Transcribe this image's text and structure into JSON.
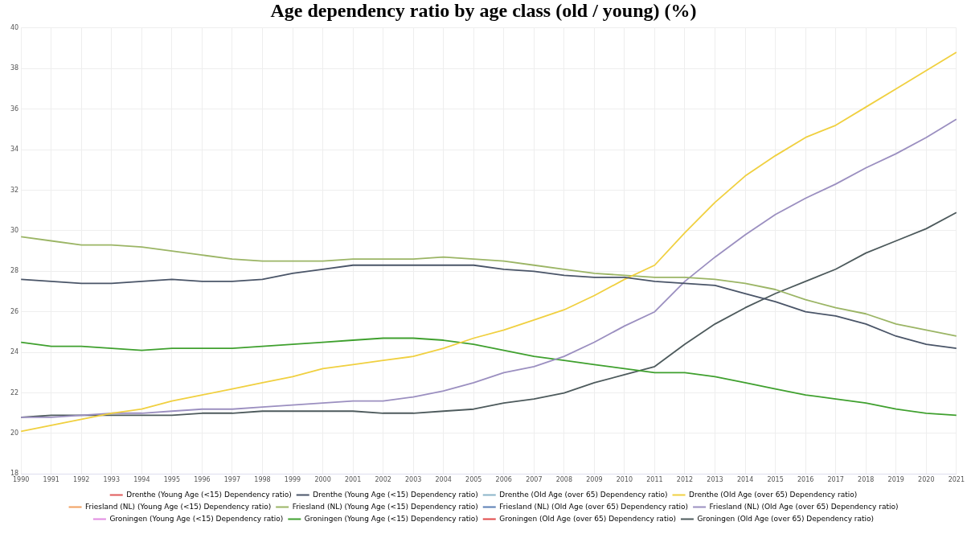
{
  "chart_data": {
    "type": "line",
    "title": "Age dependency ratio by age class (old / young) (%)",
    "categories": [
      "1990",
      "1991",
      "1992",
      "1993",
      "1994",
      "1995",
      "1996",
      "1997",
      "1998",
      "1999",
      "2000",
      "2001",
      "2002",
      "2003",
      "2004",
      "2005",
      "2006",
      "2007",
      "2008",
      "2009",
      "2010",
      "2011",
      "2012",
      "2013",
      "2014",
      "2015",
      "2016",
      "2017",
      "2018",
      "2019",
      "2020",
      "2021"
    ],
    "ylim": [
      18,
      40
    ],
    "yticks": [
      18,
      20,
      22,
      24,
      26,
      28,
      30,
      32,
      34,
      36,
      38,
      40
    ],
    "grid": true,
    "legend": "bottom",
    "marker": "none",
    "line_style": "solid",
    "series": [
      {
        "name": "Drenthe (Young Age (<15) Dependency ratio)",
        "color": "#e05a5a",
        "values": [
          null,
          null,
          null,
          null,
          null,
          null,
          null,
          null,
          null,
          null,
          null,
          null,
          null,
          null,
          null,
          null,
          null,
          null,
          null,
          null,
          null,
          null,
          null,
          null,
          null,
          null,
          null,
          null,
          null,
          null,
          null,
          null
        ]
      },
      {
        "name": "Drenthe (Young Age (<15) Dependency ratio)",
        "color": "#4a5568",
        "values": [
          27.6,
          27.5,
          27.4,
          27.4,
          27.5,
          27.6,
          27.5,
          27.5,
          27.6,
          27.9,
          28.1,
          28.3,
          28.3,
          28.3,
          28.3,
          28.3,
          28.1,
          28.0,
          27.8,
          27.7,
          27.7,
          27.5,
          27.4,
          27.3,
          26.9,
          26.5,
          26.0,
          25.8,
          25.4,
          24.8,
          24.4,
          24.2
        ]
      },
      {
        "name": "Drenthe (Old Age (over 65) Dependency ratio)",
        "color": "#8ab4c8",
        "values": [
          null,
          null,
          null,
          null,
          null,
          null,
          null,
          null,
          null,
          null,
          null,
          null,
          null,
          null,
          null,
          null,
          null,
          null,
          null,
          null,
          null,
          null,
          null,
          null,
          null,
          null,
          null,
          null,
          null,
          null,
          null,
          null
        ]
      },
      {
        "name": "Drenthe (Old Age (over 65) Dependency ratio)",
        "color": "#f0d040",
        "values": [
          20.1,
          20.4,
          20.7,
          21.0,
          21.2,
          21.6,
          21.9,
          22.2,
          22.5,
          22.8,
          23.2,
          23.4,
          23.6,
          23.8,
          24.2,
          24.7,
          25.1,
          25.6,
          26.1,
          26.8,
          27.6,
          28.3,
          29.9,
          31.4,
          32.7,
          33.7,
          34.6,
          35.2,
          36.1,
          37.0,
          37.9,
          38.8
        ]
      },
      {
        "name": "Friesland (NL) (Young Age (<15) Dependency ratio)",
        "color": "#f0a060",
        "values": [
          null,
          null,
          null,
          null,
          null,
          null,
          null,
          null,
          null,
          null,
          null,
          null,
          null,
          null,
          null,
          null,
          null,
          null,
          null,
          null,
          null,
          null,
          null,
          null,
          null,
          null,
          null,
          null,
          null,
          null,
          null,
          null
        ]
      },
      {
        "name": "Friesland (NL) (Young Age (<15) Dependency ratio)",
        "color": "#9bb565",
        "values": [
          29.7,
          29.5,
          29.3,
          29.3,
          29.2,
          29.0,
          28.8,
          28.6,
          28.5,
          28.5,
          28.5,
          28.6,
          28.6,
          28.6,
          28.7,
          28.6,
          28.5,
          28.3,
          28.1,
          27.9,
          27.8,
          27.7,
          27.7,
          27.6,
          27.4,
          27.1,
          26.6,
          26.2,
          25.9,
          25.4,
          25.1,
          24.8
        ]
      },
      {
        "name": "Friesland (NL) (Old Age (over 65) Dependency ratio)",
        "color": "#5b7fb5",
        "values": [
          null,
          null,
          null,
          null,
          null,
          null,
          null,
          null,
          null,
          null,
          null,
          null,
          null,
          null,
          null,
          null,
          null,
          null,
          null,
          null,
          null,
          null,
          null,
          null,
          null,
          null,
          null,
          null,
          null,
          null,
          null,
          null
        ]
      },
      {
        "name": "Friesland (NL) (Old Age (over 65) Dependency ratio)",
        "color": "#9b8fc0",
        "values": [
          20.8,
          20.8,
          20.9,
          21.0,
          21.0,
          21.1,
          21.2,
          21.2,
          21.3,
          21.4,
          21.5,
          21.6,
          21.6,
          21.8,
          22.1,
          22.5,
          23.0,
          23.3,
          23.8,
          24.5,
          25.3,
          26.0,
          27.5,
          28.7,
          29.8,
          30.8,
          31.6,
          32.3,
          33.1,
          33.8,
          34.6,
          35.5
        ]
      },
      {
        "name": "Groningen (Young Age (<15) Dependency ratio)",
        "color": "#e08ae0",
        "values": [
          null,
          null,
          null,
          null,
          null,
          null,
          null,
          null,
          null,
          null,
          null,
          null,
          null,
          null,
          null,
          null,
          null,
          null,
          null,
          null,
          null,
          null,
          null,
          null,
          null,
          null,
          null,
          null,
          null,
          null,
          null,
          null
        ]
      },
      {
        "name": "Groningen (Young Age (<15) Dependency ratio)",
        "color": "#3fa02e",
        "values": [
          24.5,
          24.3,
          24.3,
          24.2,
          24.1,
          24.2,
          24.2,
          24.2,
          24.3,
          24.4,
          24.5,
          24.6,
          24.7,
          24.7,
          24.6,
          24.4,
          24.1,
          23.8,
          23.6,
          23.4,
          23.2,
          23.0,
          23.0,
          22.8,
          22.5,
          22.2,
          21.9,
          21.7,
          21.5,
          21.2,
          21.0,
          20.9
        ]
      },
      {
        "name": "Groningen (Old Age (over 65) Dependency ratio)",
        "color": "#e04848",
        "values": [
          null,
          null,
          null,
          null,
          null,
          null,
          null,
          null,
          null,
          null,
          null,
          null,
          null,
          null,
          null,
          null,
          null,
          null,
          null,
          null,
          null,
          null,
          null,
          null,
          null,
          null,
          null,
          null,
          null,
          null,
          null,
          null
        ]
      },
      {
        "name": "Groningen (Old Age (over 65) Dependency ratio)",
        "color": "#4d5a5c",
        "values": [
          20.8,
          20.9,
          20.9,
          20.9,
          20.9,
          20.9,
          21.0,
          21.0,
          21.1,
          21.1,
          21.1,
          21.1,
          21.0,
          21.0,
          21.1,
          21.2,
          21.5,
          21.7,
          22.0,
          22.5,
          22.9,
          23.3,
          24.4,
          25.4,
          26.2,
          26.9,
          27.5,
          28.1,
          28.9,
          29.5,
          30.1,
          30.9
        ]
      }
    ]
  }
}
